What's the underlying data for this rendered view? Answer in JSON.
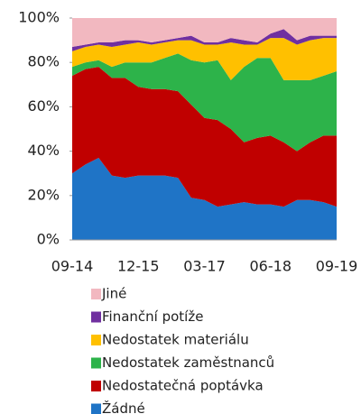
{
  "chart_data": {
    "type": "stacked_area",
    "categories": [
      "09-14",
      null,
      null,
      null,
      null,
      "12-15",
      null,
      null,
      null,
      null,
      "03-17",
      null,
      null,
      null,
      null,
      "06-18",
      null,
      null,
      null,
      null,
      "09-19"
    ],
    "series": [
      {
        "name": "Žádné",
        "color": "#1f74c6",
        "values": [
          30,
          34,
          37,
          29,
          28,
          29,
          29,
          29,
          28,
          19,
          18,
          15,
          16,
          17,
          16,
          16,
          15,
          18,
          18,
          17,
          15
        ]
      },
      {
        "name": "Nedostatečná poptávka",
        "color": "#c00000",
        "values": [
          44,
          43,
          41,
          44,
          45,
          40,
          39,
          39,
          39,
          42,
          37,
          39,
          34,
          27,
          30,
          31,
          29,
          22,
          26,
          30,
          32
        ]
      },
      {
        "name": "Nedostatek zaměstnanců",
        "color": "#2db34a",
        "values": [
          4,
          3,
          3,
          5,
          7,
          11,
          12,
          14,
          17,
          20,
          25,
          27,
          22,
          34,
          36,
          35,
          28,
          32,
          28,
          27,
          29
        ]
      },
      {
        "name": "Nedostatek materiálu",
        "color": "#ffc000",
        "values": [
          7,
          7,
          7,
          9,
          8,
          9,
          8,
          7,
          6,
          9,
          8,
          7,
          17,
          10,
          6,
          9,
          19,
          16,
          18,
          17,
          15
        ]
      },
      {
        "name": "Finanční potíže",
        "color": "#7030a0",
        "values": [
          2,
          1,
          1,
          2,
          2,
          1,
          1,
          1,
          1,
          2,
          1,
          1,
          2,
          2,
          1,
          2,
          4,
          2,
          2,
          1,
          1
        ]
      },
      {
        "name": "Jiné",
        "color": "#f2b8c0",
        "values": [
          13,
          12,
          11,
          11,
          10,
          10,
          11,
          10,
          9,
          8,
          11,
          11,
          9,
          10,
          11,
          7,
          5,
          10,
          8,
          8,
          8
        ]
      }
    ],
    "ylim": [
      0,
      100
    ],
    "yticks": [
      {
        "value": 0,
        "label": "0%"
      },
      {
        "value": 20,
        "label": "20%"
      },
      {
        "value": 40,
        "label": "40%"
      },
      {
        "value": 60,
        "label": "60%"
      },
      {
        "value": 80,
        "label": "80%"
      },
      {
        "value": 100,
        "label": "100%"
      }
    ]
  }
}
